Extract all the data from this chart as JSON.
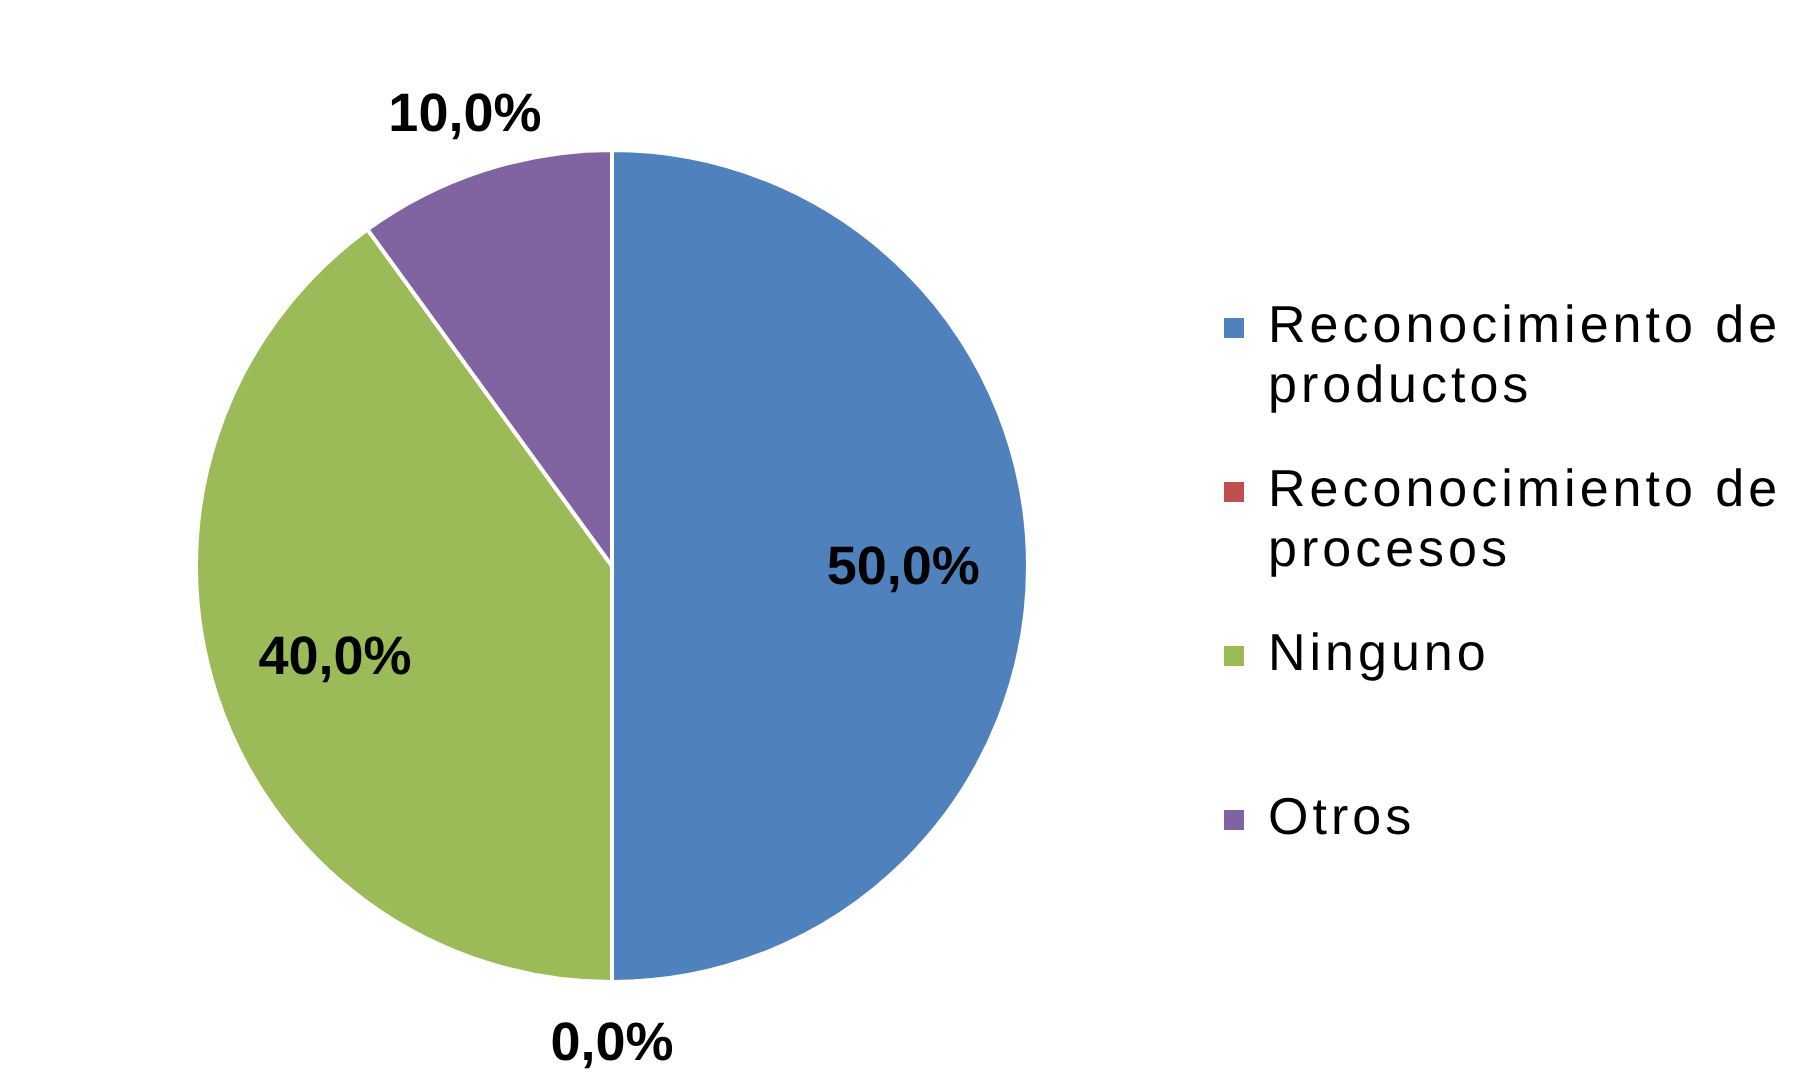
{
  "chart_data": {
    "type": "pie",
    "categories": [
      "Reconocimiento de productos",
      "Reconocimiento de procesos",
      "Ninguno",
      "Otros"
    ],
    "values": [
      50,
      0,
      40,
      10
    ],
    "colors": [
      "#4f81bd",
      "#c0504d",
      "#9bbb59",
      "#8064a2"
    ],
    "value_labels": [
      "50,0%",
      "0,0%",
      "40,0%",
      "10,0%"
    ],
    "legend": "right"
  }
}
